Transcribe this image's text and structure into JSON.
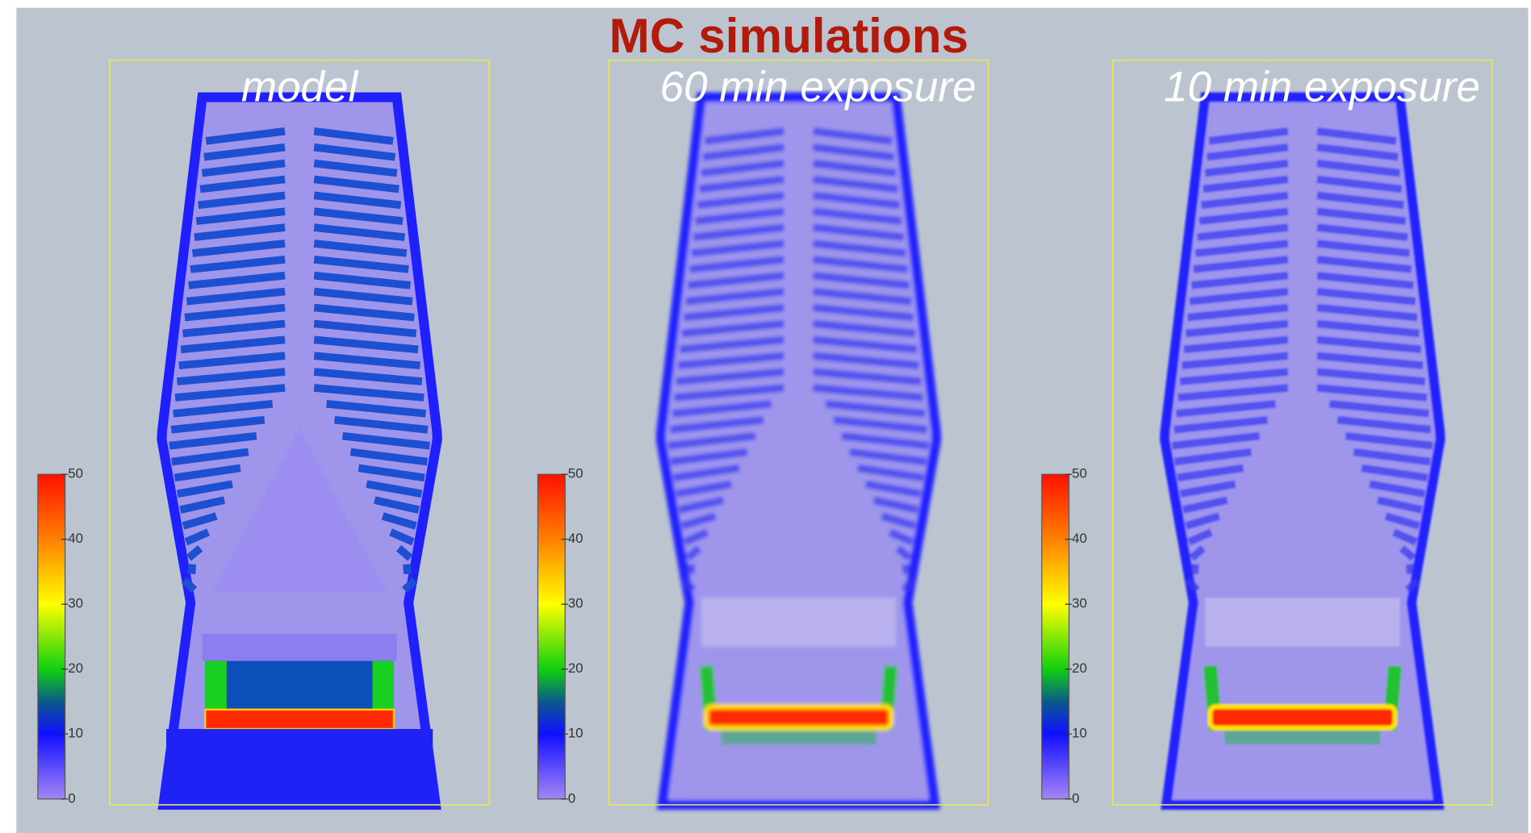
{
  "title": "MC simulations",
  "panels": [
    {
      "label": "model",
      "colorbar": {
        "lim": [
          0,
          50
        ],
        "ticks": [
          0,
          10,
          20,
          30,
          40,
          50
        ]
      }
    },
    {
      "label": "60 min exposure",
      "colorbar": {
        "lim": [
          0,
          50
        ],
        "ticks": [
          0,
          10,
          20,
          30,
          40,
          50
        ]
      }
    },
    {
      "label": "10 min exposure",
      "colorbar": {
        "lim": [
          0,
          50
        ],
        "ticks": [
          0,
          10,
          20,
          30,
          40,
          50
        ]
      }
    }
  ]
}
